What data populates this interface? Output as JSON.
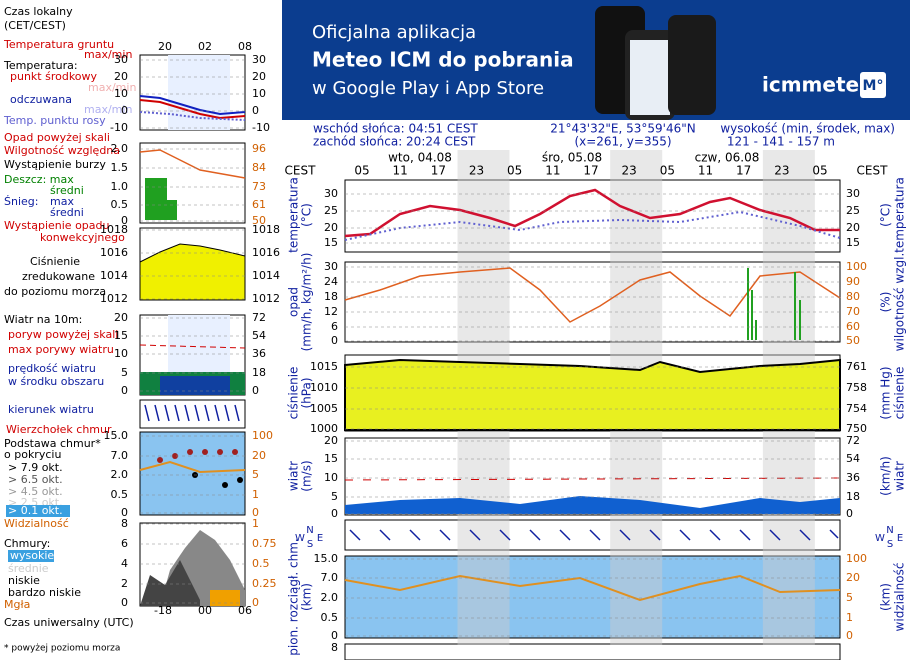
{
  "legend": {
    "local_time": [
      "Czas lokalny",
      "(CET/CEST)"
    ],
    "top_hours": [
      "20",
      "02",
      "08"
    ],
    "temperature": {
      "ground": "Temperatura gruntu",
      "ground_maxmin": "max/min",
      "heading": "Temperatura:",
      "mid": "punkt środkowy",
      "mid_maxmin": "max/min",
      "feels": "odczuwana",
      "feels_maxmin": "max/min",
      "dew": "Temp. punktu rosy",
      "ticks_left": [
        "30",
        "20",
        "10",
        "0",
        "-10"
      ],
      "ticks_right": [
        "30",
        "20",
        "10",
        "0",
        "-10"
      ]
    },
    "precipitation": {
      "over_scale": "Opad powyżej skali",
      "humidity": "Wilgotność względna",
      "storm": "Wystąpienie burzy",
      "rain_max": "Deszcz: max",
      "rain_mean": "średni",
      "snow": "Śnieg:",
      "snow_max": "max",
      "snow_mean": "średni",
      "convective": [
        "Wystąpienie opadu",
        "konwekcyjnego"
      ],
      "ticks_left": [
        "2.0",
        "1.5",
        "1.0",
        "0.5",
        "0"
      ],
      "ticks_right": [
        "96",
        "84",
        "73",
        "61",
        "50"
      ]
    },
    "pressure": {
      "label": [
        "Ciśnienie",
        "zredukowane",
        "do poziomu morza"
      ],
      "ticks_left": [
        "1018",
        "1016",
        "1014",
        "1012"
      ],
      "ticks_right": [
        "1018",
        "1016",
        "1014",
        "1012"
      ]
    },
    "wind": {
      "heading": "Wiatr na 10m:",
      "gust_over": "poryw powyżej skali",
      "gust_max": "max porywy wiatru",
      "speed": [
        "prędkość wiatru",
        "w środku obszaru"
      ],
      "direction": "kierunek wiatru",
      "ticks_left": [
        "20",
        "15",
        "10",
        "5",
        "0"
      ],
      "ticks_right": [
        "72",
        "54",
        "36",
        "18",
        "0"
      ]
    },
    "cloud_base": {
      "top": "Wierzchołek chmur",
      "base": [
        "Podstawa chmur*",
        "o pokryciu"
      ],
      "octas": [
        "> 7.9 okt.",
        "> 6.5 okt.",
        "> 4.5 okt.",
        "> 2.5 okt.",
        "> 0.1 okt."
      ],
      "visibility": "Widzialność",
      "ticks_left": [
        "15.0",
        "7.0",
        "2.0",
        "0.5",
        "0"
      ],
      "ticks_right": [
        "100",
        "20",
        "5",
        "1",
        "0"
      ]
    },
    "clouds": {
      "heading": "Chmury:",
      "high": "wysokie",
      "mid": "średnie",
      "low": "niskie",
      "very_low": "bardzo niskie",
      "fog": "Mgła",
      "ticks_left": [
        "8",
        "6",
        "4",
        "2",
        "0"
      ],
      "ticks_right": [
        "1",
        "0.75",
        "0.5",
        "0.25",
        "0"
      ]
    },
    "bottom_hours": [
      "-18",
      "00",
      "06"
    ],
    "utc": "Czas uniwersalny (UTC)",
    "footnote": "* powyżej poziomu morza"
  },
  "banner": {
    "lines": [
      "Oficjalna aplikacja",
      "Meteo ICM do pobrania",
      "w Google Play i App Store"
    ],
    "logo": "icmmeteo",
    "badge": "M°"
  },
  "info": {
    "sunrise": "wschód słońca: 04:51 CEST",
    "sunset": "zachód słońca: 20:24 CEST",
    "coords": "21°43'32\"E, 53°59'46\"N",
    "grid": "(x=261,  y=355)",
    "height_label": "wysokość (min, środek, max)",
    "height": "121 - 141 - 157 m"
  },
  "meteogram": {
    "tz": "CEST",
    "days": [
      "wto, 04.08",
      "śro, 05.08",
      "czw, 06.08"
    ],
    "hours": [
      "05",
      "11",
      "17",
      "23",
      "05",
      "11",
      "17",
      "23",
      "05",
      "11",
      "17",
      "23",
      "05"
    ],
    "temperature": {
      "label": [
        "temperatura",
        "(°C)"
      ],
      "ticks_left": [
        "30",
        "25",
        "20",
        "15"
      ],
      "ticks_right": [
        "30",
        "25",
        "20",
        "15"
      ]
    },
    "precipitation": {
      "label": [
        "opad",
        "(mm/h, kg/m²/h)"
      ],
      "label_right": [
        "(%)",
        "wilgotność wzgl."
      ],
      "ticks_left": [
        "30",
        "24",
        "18",
        "12",
        "6",
        "0"
      ],
      "ticks_right": [
        "100",
        "90",
        "80",
        "70",
        "60",
        "50"
      ]
    },
    "pressure": {
      "label": [
        "ciśnienie",
        "(hPa)"
      ],
      "label_right": [
        "(mm Hg)",
        "ciśnienie"
      ],
      "ticks_left": [
        "1015",
        "1010",
        "1005",
        "1000"
      ],
      "ticks_right": [
        "761",
        "758",
        "754",
        "750"
      ]
    },
    "wind": {
      "label": [
        "wiatr",
        "(m/s)"
      ],
      "label_right": [
        "(km/h)",
        "wiatr"
      ],
      "ticks_left": [
        "20",
        "15",
        "10",
        "5",
        "0"
      ],
      "ticks_right": [
        "72",
        "54",
        "36",
        "18",
        "0"
      ]
    },
    "compass": [
      "W",
      "N",
      "S",
      "E"
    ],
    "clouds": {
      "label": [
        "pion. rozciągł. chm.",
        "(km)"
      ],
      "label_right": [
        "(km)",
        "widzialność"
      ],
      "ticks_left": [
        "15.0",
        "7.0",
        "2.0",
        "0.5",
        "0"
      ],
      "ticks_right": [
        "100",
        "20",
        "5",
        "1",
        "0"
      ]
    },
    "strip_tick": "8"
  }
}
